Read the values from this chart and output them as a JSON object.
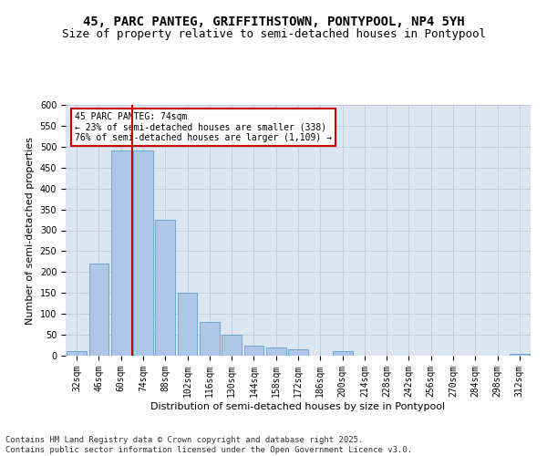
{
  "title1": "45, PARC PANTEG, GRIFFITHSTOWN, PONTYPOOL, NP4 5YH",
  "title2": "Size of property relative to semi-detached houses in Pontypool",
  "xlabel": "Distribution of semi-detached houses by size in Pontypool",
  "ylabel": "Number of semi-detached properties",
  "categories": [
    "32sqm",
    "46sqm",
    "60sqm",
    "74sqm",
    "88sqm",
    "102sqm",
    "116sqm",
    "130sqm",
    "144sqm",
    "158sqm",
    "172sqm",
    "186sqm",
    "200sqm",
    "214sqm",
    "228sqm",
    "242sqm",
    "256sqm",
    "270sqm",
    "284sqm",
    "298sqm",
    "312sqm"
  ],
  "values": [
    10,
    220,
    490,
    490,
    325,
    150,
    80,
    50,
    25,
    20,
    15,
    0,
    10,
    0,
    0,
    0,
    0,
    0,
    0,
    0,
    5
  ],
  "bar_color": "#aec6e8",
  "bar_edge_color": "#5a9fd4",
  "pct_smaller": 23,
  "pct_larger": 76,
  "count_smaller": 338,
  "count_larger": 1109,
  "annotation_box_color": "#cc0000",
  "vline_color": "#cc0000",
  "grid_color": "#c0c8d8",
  "bg_color": "#dce6f0",
  "ylim": [
    0,
    600
  ],
  "yticks": [
    0,
    50,
    100,
    150,
    200,
    250,
    300,
    350,
    400,
    450,
    500,
    550,
    600
  ],
  "footer": "Contains HM Land Registry data © Crown copyright and database right 2025.\nContains public sector information licensed under the Open Government Licence v3.0.",
  "title_fontsize": 10,
  "subtitle_fontsize": 9,
  "axis_label_fontsize": 8,
  "tick_fontsize": 7,
  "footer_fontsize": 6.5
}
